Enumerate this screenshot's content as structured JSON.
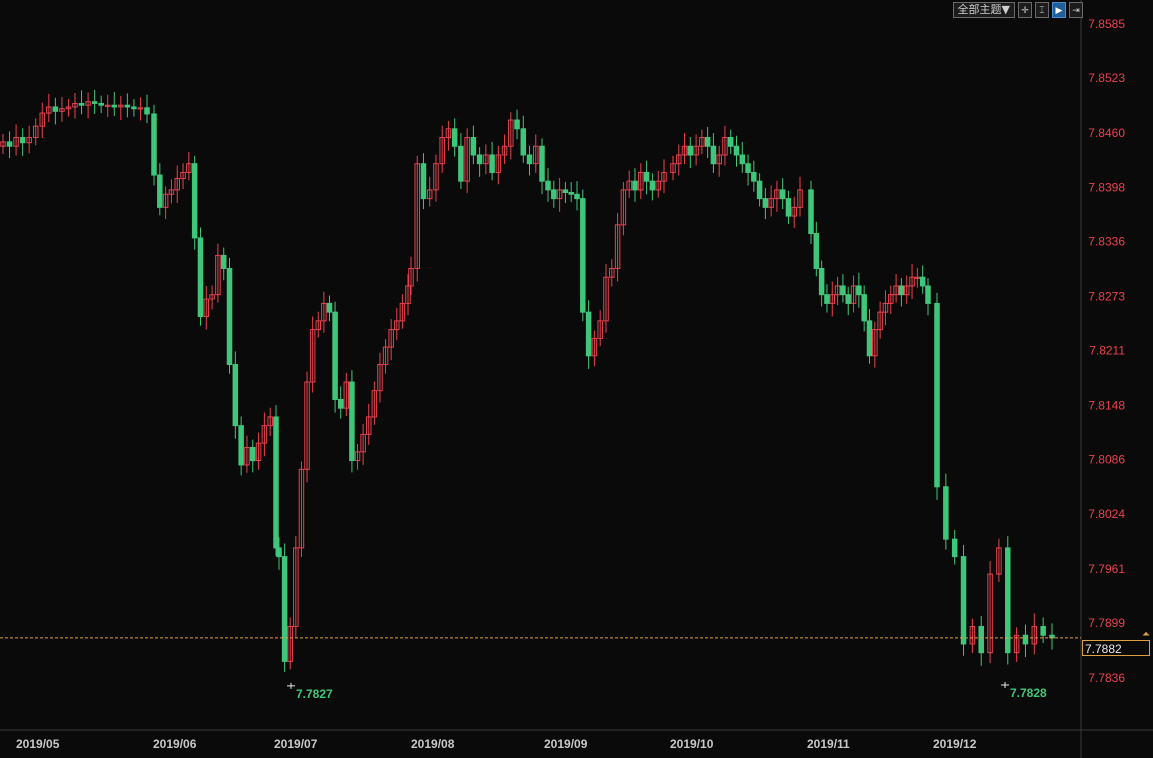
{
  "toolbar": {
    "theme_label": "全部主题▼",
    "buttons": [
      {
        "name": "crosshair-icon",
        "glyph": "✛"
      },
      {
        "name": "indicator-icon",
        "glyph": "⌶"
      },
      {
        "name": "play-icon",
        "glyph": "▶"
      },
      {
        "name": "next-icon",
        "glyph": "⇥"
      }
    ]
  },
  "colors": {
    "background": "#0a0a0a",
    "up": "#e8424f",
    "down": "#3ec77a",
    "axis_text": "#e8424f",
    "date_text": "#c8c8c8",
    "current_line": "#e0a040"
  },
  "current_price": "7.7882",
  "chart_data": {
    "type": "candlestick",
    "ylim": [
      7.7805,
      7.8605
    ],
    "y_ticks": [
      "7.8585",
      "7.8523",
      "7.8460",
      "7.8398",
      "7.8336",
      "7.8273",
      "7.8211",
      "7.8148",
      "7.8086",
      "7.8024",
      "7.7961",
      "7.7899",
      "7.7836"
    ],
    "x_labels": [
      "2019/05",
      "2019/06",
      "2019/07",
      "2019/08",
      "2019/09",
      "2019/10",
      "2019/11",
      "2019/12"
    ],
    "current_price": 7.7882,
    "low_annotations": [
      {
        "label": "7.7827",
        "value": 7.7827,
        "month": "2019/07"
      },
      {
        "label": "7.7828",
        "value": 7.7828,
        "month": "2019/12"
      }
    ],
    "series": [
      {
        "period": "2019/05",
        "closes": [
          7.845,
          7.8445,
          7.8455,
          7.8449,
          7.8455,
          7.8468,
          7.8483,
          7.849,
          7.8485,
          7.8488,
          7.849,
          7.8494,
          7.8492,
          7.8496,
          7.8494,
          7.8492,
          7.8492,
          7.849,
          7.8492,
          7.849,
          7.8488,
          7.8489,
          7.8482
        ]
      },
      {
        "period": "2019/06",
        "closes": [
          7.8412,
          7.8375,
          7.839,
          7.8395,
          7.8408,
          7.8415,
          7.8425,
          7.834,
          7.825,
          7.827,
          7.8275,
          7.832,
          7.8305,
          7.8195,
          7.8125,
          7.808,
          7.81,
          7.8085,
          7.8105,
          7.8125,
          7.8135,
          7.7985
        ]
      },
      {
        "period": "2019/07",
        "closes": [
          7.7975,
          7.7855,
          7.7895,
          7.7985,
          7.8075,
          7.8175,
          7.8235,
          7.8245,
          7.8265,
          7.8255,
          7.8155,
          7.8145,
          7.8175,
          7.8085,
          7.8095,
          7.8115,
          7.8135,
          7.8165,
          7.8195,
          7.8215,
          7.8235,
          7.8245,
          7.8265,
          7.8285
        ]
      },
      {
        "period": "2019/08",
        "closes": [
          7.8305,
          7.8425,
          7.8385,
          7.8395,
          7.8425,
          7.8455,
          7.8465,
          7.8445,
          7.8405,
          7.8455,
          7.8435,
          7.8425,
          7.8435,
          7.8415,
          7.8435,
          7.8445,
          7.8475,
          7.8465,
          7.8435,
          7.8425,
          7.8445,
          7.8405
        ]
      },
      {
        "period": "2019/09",
        "closes": [
          7.8395,
          7.8385,
          7.8395,
          7.8392,
          7.839,
          7.8385,
          7.8255,
          7.8205,
          7.8225,
          7.8245,
          7.8295,
          7.8305,
          7.8355,
          7.8395,
          7.8405,
          7.8395,
          7.8415,
          7.8405,
          7.8395,
          7.8405,
          7.8415
        ]
      },
      {
        "period": "2019/10",
        "closes": [
          7.8425,
          7.8435,
          7.8445,
          7.8435,
          7.8445,
          7.8455,
          7.8445,
          7.8425,
          7.8435,
          7.8455,
          7.8445,
          7.8435,
          7.8425,
          7.8415,
          7.8405,
          7.8385,
          7.8375,
          7.8385,
          7.8395,
          7.8385,
          7.8365,
          7.8375,
          7.8395
        ]
      },
      {
        "period": "2019/11",
        "closes": [
          7.8345,
          7.8305,
          7.8275,
          7.8265,
          7.8275,
          7.8285,
          7.8275,
          7.8265,
          7.8285,
          7.8275,
          7.8245,
          7.8205,
          7.8235,
          7.8255,
          7.8265,
          7.8275,
          7.8285,
          7.8275,
          7.8285,
          7.8295,
          7.8295,
          7.8285,
          7.8265
        ]
      },
      {
        "period": "2019/12",
        "closes": [
          7.8055,
          7.7995,
          7.7975,
          7.7875,
          7.7895,
          7.7865,
          7.7955,
          7.7985,
          7.7865,
          7.7885,
          7.7875,
          7.7895,
          7.7885,
          7.7882
        ]
      }
    ]
  }
}
